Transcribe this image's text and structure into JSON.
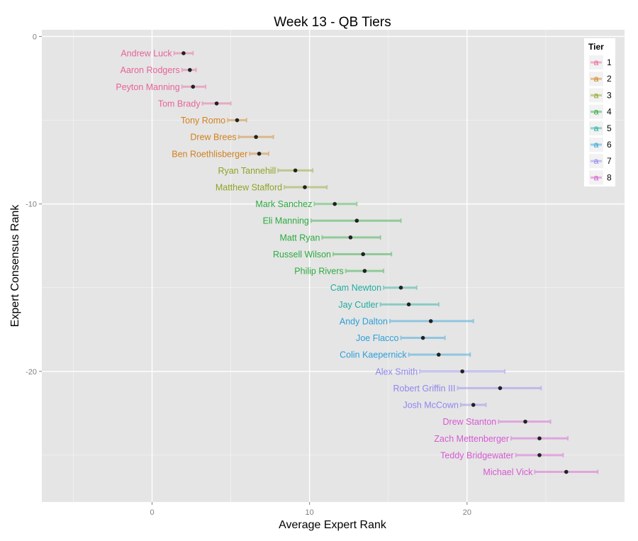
{
  "chart_data": {
    "type": "scatter",
    "title": "Week 13 - QB Tiers",
    "xlabel": "Average Expert Rank",
    "ylabel": "Expert Consensus Rank",
    "xlim": [
      -7,
      30
    ],
    "ylim": [
      -27.8,
      0.4
    ],
    "x_ticks": [
      0,
      10,
      20
    ],
    "y_ticks": [
      0,
      -10,
      -20
    ],
    "grid": true,
    "legend": {
      "title": "Tier",
      "placement": "top-right",
      "glyph": "a",
      "entries": [
        {
          "label": "1",
          "color": "#E7639A"
        },
        {
          "label": "2",
          "color": "#D1801F"
        },
        {
          "label": "3",
          "color": "#8FA326"
        },
        {
          "label": "4",
          "color": "#2CAA40"
        },
        {
          "label": "5",
          "color": "#1FAD9E"
        },
        {
          "label": "6",
          "color": "#2C9FD8"
        },
        {
          "label": "7",
          "color": "#8F86EE"
        },
        {
          "label": "8",
          "color": "#D659D2"
        }
      ]
    },
    "points": [
      {
        "label": "Andrew Luck",
        "tier": 1,
        "rank": -1,
        "avg": 2.0,
        "min": 1.4,
        "max": 2.6
      },
      {
        "label": "Aaron Rodgers",
        "tier": 1,
        "rank": -2,
        "avg": 2.4,
        "min": 1.9,
        "max": 2.8
      },
      {
        "label": "Peyton Manning",
        "tier": 1,
        "rank": -3,
        "avg": 2.6,
        "min": 1.9,
        "max": 3.4
      },
      {
        "label": "Tom Brady",
        "tier": 1,
        "rank": -4,
        "avg": 4.1,
        "min": 3.2,
        "max": 5.0
      },
      {
        "label": "Tony Romo",
        "tier": 2,
        "rank": -5,
        "avg": 5.4,
        "min": 4.8,
        "max": 6.0
      },
      {
        "label": "Drew Brees",
        "tier": 2,
        "rank": -6,
        "avg": 6.6,
        "min": 5.5,
        "max": 7.7
      },
      {
        "label": "Ben Roethlisberger",
        "tier": 2,
        "rank": -7,
        "avg": 6.8,
        "min": 6.2,
        "max": 7.4
      },
      {
        "label": "Ryan Tannehill",
        "tier": 3,
        "rank": -8,
        "avg": 9.1,
        "min": 8.0,
        "max": 10.2
      },
      {
        "label": "Matthew Stafford",
        "tier": 3,
        "rank": -9,
        "avg": 9.7,
        "min": 8.4,
        "max": 11.1
      },
      {
        "label": "Mark Sanchez",
        "tier": 4,
        "rank": -10,
        "avg": 11.6,
        "min": 10.3,
        "max": 13.0
      },
      {
        "label": "Eli Manning",
        "tier": 4,
        "rank": -11,
        "avg": 13.0,
        "min": 10.1,
        "max": 15.8
      },
      {
        "label": "Matt Ryan",
        "tier": 4,
        "rank": -12,
        "avg": 12.6,
        "min": 10.8,
        "max": 14.5
      },
      {
        "label": "Russell Wilson",
        "tier": 4,
        "rank": -13,
        "avg": 13.4,
        "min": 11.5,
        "max": 15.2
      },
      {
        "label": "Philip Rivers",
        "tier": 4,
        "rank": -14,
        "avg": 13.5,
        "min": 12.3,
        "max": 14.7
      },
      {
        "label": "Cam Newton",
        "tier": 5,
        "rank": -15,
        "avg": 15.8,
        "min": 14.7,
        "max": 16.8
      },
      {
        "label": "Jay Cutler",
        "tier": 5,
        "rank": -16,
        "avg": 16.3,
        "min": 14.5,
        "max": 18.2
      },
      {
        "label": "Andy Dalton",
        "tier": 6,
        "rank": -17,
        "avg": 17.7,
        "min": 15.1,
        "max": 20.4
      },
      {
        "label": "Joe Flacco",
        "tier": 6,
        "rank": -18,
        "avg": 17.2,
        "min": 15.8,
        "max": 18.6
      },
      {
        "label": "Colin Kaepernick",
        "tier": 6,
        "rank": -19,
        "avg": 18.2,
        "min": 16.3,
        "max": 20.2
      },
      {
        "label": "Alex Smith",
        "tier": 7,
        "rank": -20,
        "avg": 19.7,
        "min": 17.0,
        "max": 22.4
      },
      {
        "label": "Robert Griffin III",
        "tier": 7,
        "rank": -21,
        "avg": 22.1,
        "min": 19.4,
        "max": 24.7
      },
      {
        "label": "Josh McCown",
        "tier": 7,
        "rank": -22,
        "avg": 20.4,
        "min": 19.6,
        "max": 21.2
      },
      {
        "label": "Drew Stanton",
        "tier": 8,
        "rank": -23,
        "avg": 23.7,
        "min": 22.0,
        "max": 25.3
      },
      {
        "label": "Zach Mettenberger",
        "tier": 8,
        "rank": -24,
        "avg": 24.6,
        "min": 22.8,
        "max": 26.4
      },
      {
        "label": "Teddy Bridgewater",
        "tier": 8,
        "rank": -25,
        "avg": 24.6,
        "min": 23.1,
        "max": 26.1
      },
      {
        "label": "Michael Vick",
        "tier": 8,
        "rank": -26,
        "avg": 26.3,
        "min": 24.3,
        "max": 28.3
      }
    ]
  }
}
